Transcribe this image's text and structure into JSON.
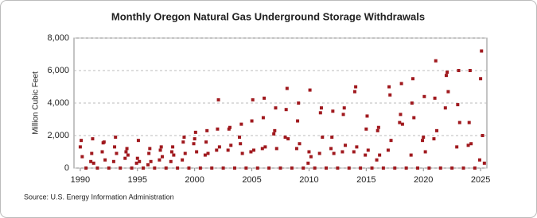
{
  "chart_data": {
    "type": "scatter",
    "title": "Monthly Oregon Natural  Gas Underground Storage Withdrawals",
    "y_label": "Million Cubic Feet",
    "source": "Source: U.S. Energy Information Administration",
    "color": "#a0191e",
    "grid": true,
    "xlim": [
      1989.45,
      2025.55
    ],
    "ylim": [
      0,
      8000
    ],
    "xticks": [
      1990,
      1995,
      2000,
      2005,
      2010,
      2015,
      2020,
      2025
    ],
    "yticks": [
      0,
      {
        "value": 2000,
        "label": "2,000"
      },
      {
        "value": 4000,
        "label": "4,000"
      },
      {
        "value": 6000,
        "label": "6,000"
      },
      {
        "value": 8000,
        "label": "8,000"
      }
    ],
    "x": [
      1990,
      1990.08,
      1990.17,
      1990.5,
      1990.92,
      1991,
      1991.08,
      1991.17,
      1991.5,
      1991.92,
      1992,
      1992.08,
      1992.17,
      1992.5,
      1992.92,
      1993,
      1993.08,
      1993.17,
      1993.5,
      1993.92,
      1994,
      1994.08,
      1994.17,
      1994.5,
      1994.92,
      1995,
      1995.08,
      1995.17,
      1995.5,
      1995.92,
      1996,
      1996.08,
      1996.17,
      1996.5,
      1996.92,
      1997,
      1997.08,
      1997.17,
      1997.5,
      1997.92,
      1998,
      1998.08,
      1998.17,
      1998.5,
      1998.92,
      1999,
      1999.08,
      1999.17,
      1999.5,
      1999.92,
      2000,
      2000.08,
      2000.17,
      2000.5,
      2000.92,
      2001,
      2001.08,
      2001.17,
      2001.5,
      2001.92,
      2002,
      2002.08,
      2002.17,
      2002.5,
      2002.92,
      2003,
      2003.08,
      2003.17,
      2003.5,
      2003.92,
      2004,
      2004.08,
      2004.17,
      2004.5,
      2004.92,
      2005,
      2005.08,
      2005.17,
      2005.5,
      2005.92,
      2006,
      2006.08,
      2006.17,
      2006.5,
      2006.92,
      2007,
      2007.08,
      2007.17,
      2007.5,
      2007.92,
      2008,
      2008.08,
      2008.17,
      2008.5,
      2008.92,
      2009,
      2009.08,
      2009.17,
      2009.5,
      2009.92,
      2010,
      2010.08,
      2010.17,
      2010.5,
      2010.92,
      2011,
      2011.08,
      2011.17,
      2011.5,
      2011.92,
      2012,
      2012.08,
      2012.17,
      2012.5,
      2012.92,
      2013,
      2013.08,
      2013.17,
      2013.5,
      2013.92,
      2014,
      2014.08,
      2014.17,
      2014.5,
      2014.92,
      2015,
      2015.08,
      2015.17,
      2015.5,
      2015.92,
      2016,
      2016.08,
      2016.17,
      2016.5,
      2016.92,
      2017,
      2017.08,
      2017.17,
      2017.5,
      2017.92,
      2018,
      2018.08,
      2018.17,
      2018.5,
      2018.92,
      2019,
      2019.08,
      2019.17,
      2019.5,
      2019.92,
      2020,
      2020.08,
      2020.17,
      2020.5,
      2020.92,
      2021,
      2021.08,
      2021.17,
      2021.5,
      2021.92,
      2022,
      2022.08,
      2022.17,
      2022.5,
      2022.92,
      2023,
      2023.08,
      2023.17,
      2023.5,
      2023.92,
      2024,
      2024.08,
      2024.17,
      2024.5,
      2024.92,
      2025,
      2025.08,
      2025.17,
      2025.33
    ],
    "values": [
      1300,
      1700,
      700,
      0,
      400,
      900,
      1800,
      300,
      0,
      1000,
      1550,
      1600,
      500,
      0,
      400,
      1300,
      1900,
      900,
      0,
      600,
      1000,
      1200,
      800,
      0,
      300,
      600,
      1700,
      400,
      0,
      200,
      900,
      1200,
      400,
      0,
      500,
      1100,
      1300,
      700,
      0,
      400,
      1000,
      1300,
      800,
      0,
      500,
      1600,
      1900,
      900,
      0,
      1500,
      1800,
      2200,
      1000,
      0,
      800,
      1600,
      2300,
      900,
      0,
      1100,
      2400,
      4200,
      1300,
      0,
      1100,
      2400,
      2500,
      1400,
      0,
      1900,
      1500,
      2700,
      900,
      0,
      1000,
      2900,
      4200,
      1100,
      0,
      1200,
      3100,
      4300,
      1300,
      0,
      2100,
      2300,
      3700,
      1200,
      0,
      1900,
      3600,
      4900,
      1800,
      0,
      1200,
      2900,
      4000,
      1500,
      0,
      300,
      1000,
      4800,
      700,
      0,
      900,
      3400,
      3700,
      1900,
      0,
      1200,
      1900,
      3500,
      900,
      0,
      1000,
      3300,
      3700,
      1400,
      0,
      1000,
      4700,
      5000,
      1300,
      0,
      800,
      2400,
      3200,
      1100,
      0,
      500,
      2300,
      2500,
      800,
      0,
      1100,
      5000,
      4500,
      1700,
      0,
      2800,
      3300,
      5200,
      2700,
      0,
      800,
      4000,
      5500,
      3100,
      0,
      1700,
      1900,
      4400,
      1000,
      0,
      1800,
      4300,
      6600,
      2300,
      0,
      3700,
      5700,
      5900,
      4700,
      0,
      1300,
      3900,
      6000,
      2800,
      0,
      1400,
      2800,
      6000,
      1500,
      0,
      500,
      5500,
      7200,
      2000,
      300
    ]
  }
}
